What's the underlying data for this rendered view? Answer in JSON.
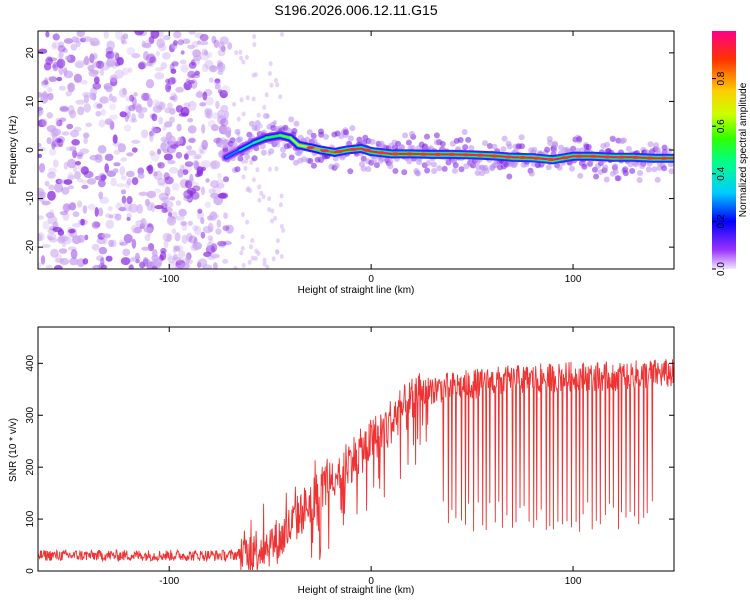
{
  "title": "S196.2026.006.12.11.G15",
  "chart_data": [
    {
      "type": "heatmap",
      "xlabel": "Height of straight line (km)",
      "ylabel": "Frequency (Hz)",
      "xlim": [
        -165,
        150
      ],
      "ylim": [
        -24.5,
        24.5
      ],
      "x_ticks": [
        -100,
        0,
        100
      ],
      "y_ticks": [
        -20,
        -10,
        0,
        10,
        20
      ],
      "colorbar": {
        "label": "Normalized spectral amplitude",
        "range": [
          0,
          1
        ],
        "ticks": [
          0.0,
          0.2,
          0.4,
          0.6,
          0.8
        ],
        "tick_labels": [
          "0.0",
          "0.2",
          "0.4",
          "0.6",
          "0.8"
        ]
      },
      "noise_region": {
        "x_range": [
          -165,
          -70
        ],
        "amplitude": 0.15
      },
      "ridge": {
        "x": [
          -72,
          -65,
          -58,
          -52,
          -45,
          -40,
          -36,
          -30,
          -25,
          -18,
          -12,
          -5,
          0,
          10,
          20,
          30,
          40,
          50,
          60,
          70,
          80,
          90,
          100,
          110,
          120,
          130,
          140,
          150
        ],
        "frequency": [
          -1.5,
          0,
          1.5,
          2.5,
          3,
          2.5,
          1,
          0.5,
          0,
          -0.5,
          0,
          0.3,
          -0.3,
          -0.8,
          -0.8,
          -0.9,
          -0.9,
          -1.0,
          -1.2,
          -1.5,
          -1.6,
          -2.0,
          -1.3,
          -1.3,
          -1.5,
          -1.5,
          -1.7,
          -1.7
        ],
        "amplitude": [
          0.2,
          0.3,
          0.4,
          0.45,
          0.5,
          0.55,
          0.6,
          0.7,
          0.75,
          0.8,
          0.8,
          0.85,
          0.85,
          0.9,
          0.85,
          0.85,
          0.9,
          0.85,
          0.85,
          0.9,
          0.9,
          0.95,
          0.85,
          0.85,
          0.9,
          0.9,
          0.85,
          0.85
        ]
      }
    },
    {
      "type": "line",
      "xlabel": "Height of straight line (km)",
      "ylabel": "SNR (10 * v/v)",
      "xlim": [
        -165,
        150
      ],
      "ylim": [
        0,
        470
      ],
      "x_ticks": [
        -100,
        0,
        100
      ],
      "y_ticks": [
        0,
        100,
        200,
        300,
        400
      ],
      "color": "#ee3333",
      "trend": {
        "x": [
          -165,
          -70,
          -60,
          -55,
          -45,
          -35,
          -25,
          -15,
          -5,
          5,
          15,
          25,
          30,
          40,
          50,
          60,
          80,
          100,
          120,
          140,
          150
        ],
        "snr": [
          30,
          30,
          35,
          45,
          60,
          110,
          160,
          200,
          230,
          270,
          310,
          340,
          350,
          355,
          360,
          365,
          370,
          375,
          375,
          380,
          380
        ]
      },
      "noise_amplitude": 18,
      "dropouts": {
        "x_range": [
          35,
          140
        ],
        "count": 50,
        "value_range": [
          75,
          135
        ]
      }
    }
  ]
}
